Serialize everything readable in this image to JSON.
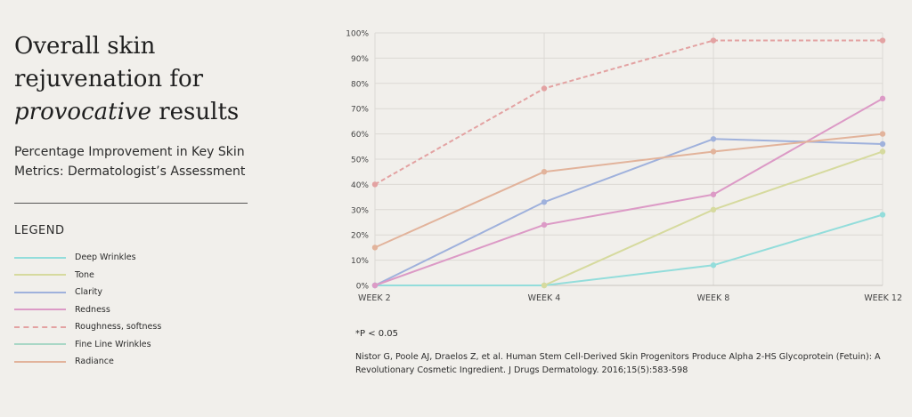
{
  "headline": {
    "line1": "Overall skin",
    "line2": "rejuvenation for",
    "line3_italic": "provocative",
    "line3_rest": " results"
  },
  "subtitle": "Percentage Improvement in Key Skin Metrics: Dermatologist’s Assessment",
  "legend_title": "LEGEND",
  "footnote": "*P < 0.05",
  "citation": "Nistor G, Poole AJ, Draelos Z, et al. Human Stem Cell-Derived Skin Progenitors Produce Alpha 2-HS Glycoprotein (Fetuin): A Revolutionary Cosmetic Ingredient. J Drugs Dermatology. 2016;15(5):583-598",
  "chart_data": {
    "type": "line",
    "title": "",
    "xlabel": "",
    "ylabel": "",
    "categories": [
      "WEEK 2",
      "WEEK 4",
      "WEEK 8",
      "WEEK 12"
    ],
    "ylim": [
      0,
      100
    ],
    "yticks": [
      0,
      10,
      20,
      30,
      40,
      50,
      60,
      70,
      80,
      90,
      100
    ],
    "ytick_suffix": "%",
    "grid": true,
    "legend_position": "left",
    "series": [
      {
        "name": "Deep Wrinkles",
        "color": "#93dddb",
        "dashed": false,
        "values": [
          0,
          0,
          8,
          28
        ]
      },
      {
        "name": "Tone",
        "color": "#d6da9e",
        "dashed": false,
        "values": [
          null,
          0,
          30,
          53
        ]
      },
      {
        "name": "Clarity",
        "color": "#9fb1dc",
        "dashed": false,
        "values": [
          0,
          33,
          58,
          56
        ]
      },
      {
        "name": "Redness",
        "color": "#dc9ac6",
        "dashed": false,
        "values": [
          0,
          24,
          36,
          74
        ]
      },
      {
        "name": "Roughness, softness",
        "color": "#e3a2a2",
        "dashed": true,
        "values": [
          40,
          78,
          97,
          97
        ]
      },
      {
        "name": "Fine Line Wrinkles",
        "color": "#a9d7c6",
        "dashed": false,
        "values": [
          null,
          null,
          null,
          null
        ]
      },
      {
        "name": "Radiance",
        "color": "#e2b39b",
        "dashed": false,
        "values": [
          15,
          45,
          53,
          60
        ]
      }
    ]
  }
}
